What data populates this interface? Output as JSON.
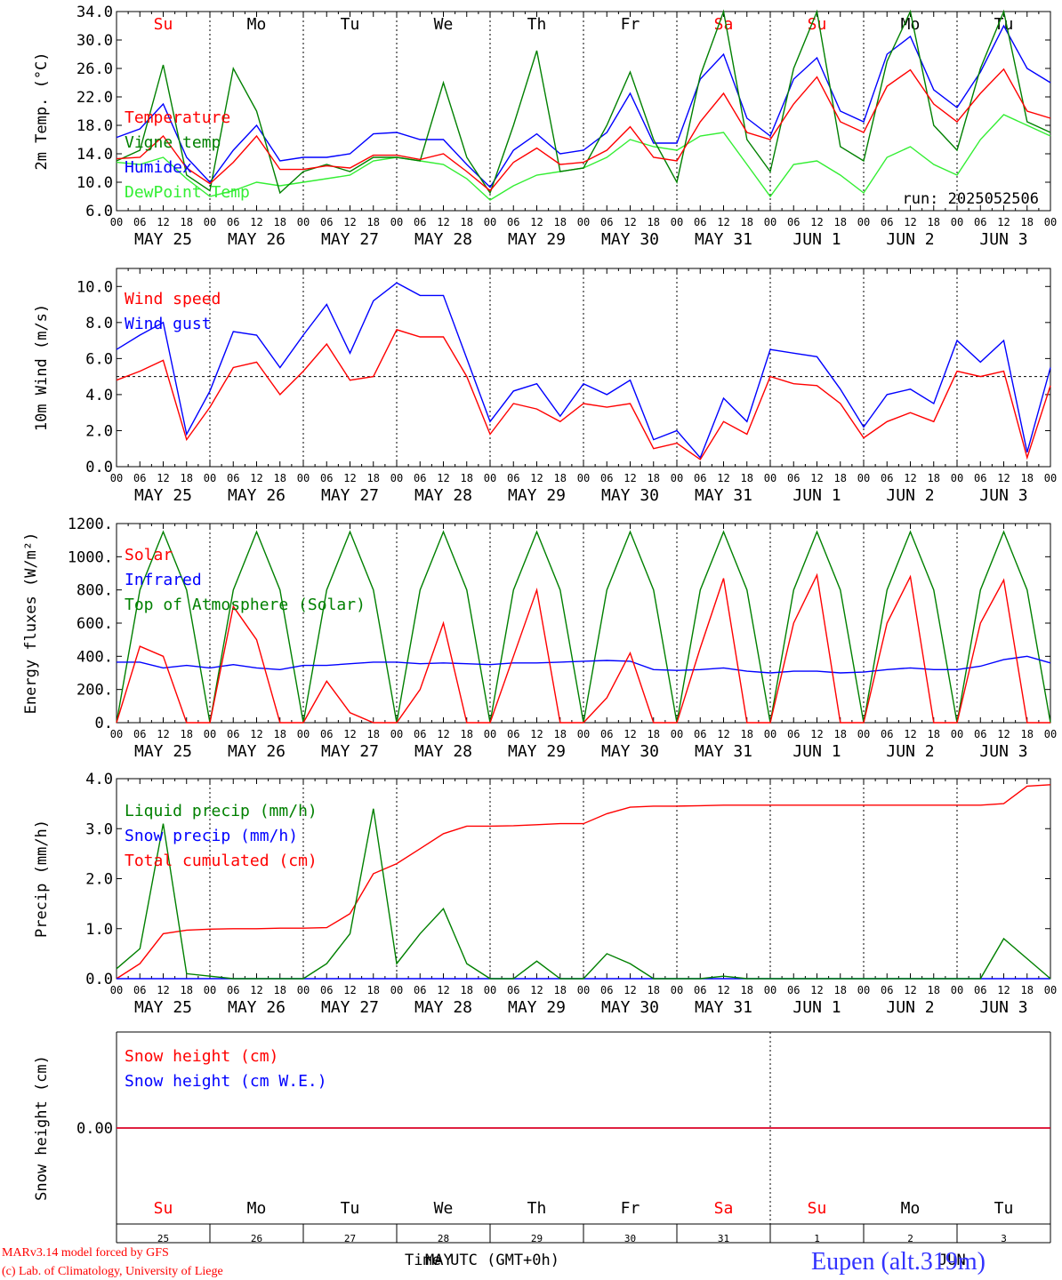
{
  "colors": {
    "red": "#ff0000",
    "green": "#008000",
    "blue": "#0000ff",
    "lightgreen": "#33ee33",
    "black": "#000000"
  },
  "days": [
    "Su",
    "Mo",
    "Tu",
    "We",
    "Th",
    "Fr",
    "Sa",
    "Su",
    "Mo",
    "Tu"
  ],
  "weekend_days": [
    0,
    6,
    7
  ],
  "date_labels": [
    "MAY 25",
    "MAY 26",
    "MAY 27",
    "MAY 28",
    "MAY 29",
    "MAY 30",
    "MAY 31",
    "JUN  1",
    "JUN  2",
    "JUN  3"
  ],
  "hour_ticks": [
    "00",
    "06",
    "12",
    "18"
  ],
  "bottom_day_numbers": [
    "25",
    "26",
    "27",
    "28",
    "29",
    "30",
    "31",
    "1",
    "2",
    "3"
  ],
  "footer": {
    "model_line": "MARv3.14 model forced by GFS",
    "copyright_line": "(c) Lab. of Climatology, University of Liege",
    "time_label": "Time UTC (GMT+0h)",
    "month_label_1": "MAY",
    "month_label_2": "JUN",
    "station": "Eupen (alt.319m)"
  },
  "chart_data": [
    {
      "type": "line",
      "ylabel": "2m Temp. (°C)",
      "ylim": [
        6,
        34
      ],
      "yticks": [
        "6.0",
        "10.0",
        "14.0",
        "18.0",
        "22.0",
        "26.0",
        "30.0",
        "34.0"
      ],
      "ytick_values": [
        6,
        10,
        14,
        18,
        22,
        26,
        30,
        34
      ],
      "run_label": "run: 2025052506",
      "x_hours": [
        0,
        6,
        12,
        18,
        24,
        30,
        36,
        42,
        48,
        54,
        60,
        66,
        72,
        78,
        84,
        90,
        96,
        102,
        108,
        114,
        120,
        126,
        132,
        138,
        144,
        150,
        156,
        162,
        168,
        174,
        180,
        186,
        192,
        198,
        204,
        210,
        216,
        222,
        228,
        234,
        240
      ],
      "series": [
        {
          "name": "Temperature",
          "color": "#ff0000",
          "values": [
            13.3,
            13.5,
            16.5,
            12.0,
            9.8,
            12.8,
            16.5,
            11.8,
            11.8,
            12.3,
            12.0,
            13.8,
            13.8,
            13.2,
            14.0,
            11.5,
            8.8,
            12.8,
            14.8,
            12.5,
            12.8,
            14.5,
            17.8,
            13.5,
            13.0,
            18.5,
            22.5,
            17.0,
            16.0,
            21.0,
            24.8,
            18.5,
            17.0,
            23.5,
            25.8,
            21.0,
            18.5,
            22.5,
            25.9,
            20.0,
            19.0
          ]
        },
        {
          "name": "Vigne temp",
          "color": "#008000",
          "values": [
            13.0,
            14.5,
            26.5,
            11.0,
            8.8,
            26.0,
            20.0,
            8.5,
            11.5,
            12.5,
            11.5,
            13.5,
            13.5,
            13.0,
            24.0,
            13.5,
            8.5,
            18.0,
            28.5,
            11.5,
            12.0,
            18.0,
            25.5,
            16.0,
            10.0,
            25.0,
            34.0,
            16.0,
            11.5,
            26.0,
            34.0,
            15.0,
            13.0,
            27.0,
            34.0,
            18.0,
            14.5,
            26.0,
            34.0,
            18.5,
            17.0
          ]
        },
        {
          "name": "Humidex",
          "color": "#0000ff",
          "values": [
            16.3,
            17.5,
            21.0,
            13.5,
            10.0,
            14.5,
            18.0,
            13.0,
            13.5,
            13.5,
            14.0,
            16.8,
            17.0,
            16.0,
            16.0,
            12.5,
            9.3,
            14.5,
            16.8,
            14.0,
            14.5,
            17.0,
            22.5,
            15.5,
            15.5,
            24.5,
            28.0,
            19.0,
            16.5,
            24.5,
            27.5,
            20.0,
            18.5,
            28.0,
            30.5,
            23.0,
            20.5,
            25.5,
            32.0,
            26.0,
            24.0
          ]
        },
        {
          "name": "DewPoint Temp",
          "color": "#33ee33",
          "values": [
            12.8,
            12.5,
            13.5,
            10.5,
            8.0,
            8.8,
            10.0,
            9.5,
            10.0,
            10.5,
            11.0,
            13.0,
            13.5,
            13.0,
            12.5,
            10.5,
            7.5,
            9.5,
            11.0,
            11.5,
            12.0,
            13.5,
            16.0,
            15.0,
            14.5,
            16.5,
            17.0,
            12.5,
            8.0,
            12.5,
            13.0,
            11.0,
            8.5,
            13.5,
            15.0,
            12.5,
            11.0,
            16.0,
            19.5,
            18.0,
            16.5
          ]
        }
      ]
    },
    {
      "type": "line",
      "ylabel": "10m Wind (m/s)",
      "ylim": [
        0,
        11
      ],
      "yticks": [
        "0.0",
        "2.0",
        "4.0",
        "6.0",
        "8.0",
        "10.0"
      ],
      "ytick_values": [
        0,
        2,
        4,
        6,
        8,
        10
      ],
      "reference_line": 5,
      "x_hours": [
        0,
        6,
        12,
        18,
        24,
        30,
        36,
        42,
        48,
        54,
        60,
        66,
        72,
        78,
        84,
        90,
        96,
        102,
        108,
        114,
        120,
        126,
        132,
        138,
        144,
        150,
        156,
        162,
        168,
        174,
        180,
        186,
        192,
        198,
        204,
        210,
        216,
        222,
        228,
        234,
        240
      ],
      "series": [
        {
          "name": "Wind speed",
          "color": "#ff0000",
          "values": [
            4.8,
            5.3,
            5.9,
            1.5,
            3.3,
            5.5,
            5.8,
            4.0,
            5.3,
            6.8,
            4.8,
            5.0,
            7.6,
            7.2,
            7.2,
            5.0,
            1.8,
            3.5,
            3.2,
            2.5,
            3.5,
            3.3,
            3.5,
            1.0,
            1.3,
            0.4,
            2.5,
            1.8,
            5.0,
            4.6,
            4.5,
            3.5,
            1.6,
            2.5,
            3.0,
            2.5,
            5.3,
            5.0,
            5.3,
            0.5,
            4.5
          ]
        },
        {
          "name": "Wind gust",
          "color": "#0000ff",
          "values": [
            6.5,
            7.3,
            8.0,
            1.8,
            4.2,
            7.5,
            7.3,
            5.5,
            7.3,
            9.0,
            6.3,
            9.2,
            10.2,
            9.5,
            9.5,
            6.0,
            2.5,
            4.2,
            4.6,
            2.8,
            4.6,
            4.0,
            4.8,
            1.5,
            2.0,
            0.5,
            3.8,
            2.5,
            6.5,
            6.3,
            6.1,
            4.3,
            2.2,
            4.0,
            4.3,
            3.5,
            7.0,
            5.8,
            7.0,
            0.8,
            5.5
          ]
        }
      ]
    },
    {
      "type": "line",
      "ylabel": "Energy fluxes (W/m²)",
      "ylim": [
        0,
        1200
      ],
      "yticks": [
        "0.",
        "200.",
        "400.",
        "600.",
        "800.",
        "1000.",
        "1200."
      ],
      "ytick_values": [
        0,
        200,
        400,
        600,
        800,
        1000,
        1200
      ],
      "x_hours": [
        0,
        6,
        12,
        18,
        24,
        30,
        36,
        42,
        48,
        54,
        60,
        66,
        72,
        78,
        84,
        90,
        96,
        102,
        108,
        114,
        120,
        126,
        132,
        138,
        144,
        150,
        156,
        162,
        168,
        174,
        180,
        186,
        192,
        198,
        204,
        210,
        216,
        222,
        228,
        234,
        240
      ],
      "series": [
        {
          "name": "Solar",
          "color": "#ff0000",
          "values": [
            0,
            460,
            400,
            0,
            0,
            700,
            500,
            0,
            0,
            250,
            60,
            0,
            0,
            200,
            600,
            0,
            0,
            400,
            800,
            0,
            0,
            150,
            420,
            0,
            0,
            450,
            870,
            0,
            0,
            600,
            890,
            0,
            0,
            600,
            880,
            0,
            0,
            600,
            860,
            0,
            0
          ]
        },
        {
          "name": "Infrared",
          "color": "#0000ff",
          "values": [
            365,
            365,
            330,
            345,
            330,
            350,
            330,
            320,
            345,
            345,
            355,
            365,
            365,
            355,
            360,
            355,
            350,
            360,
            360,
            365,
            370,
            375,
            370,
            320,
            315,
            320,
            330,
            310,
            300,
            310,
            310,
            300,
            305,
            320,
            330,
            320,
            320,
            340,
            380,
            400,
            360
          ]
        },
        {
          "name": "Top of Atmosphere (Solar)",
          "color": "#008000",
          "values": [
            0,
            800,
            1150,
            800,
            0,
            800,
            1150,
            800,
            0,
            800,
            1150,
            800,
            0,
            800,
            1150,
            800,
            0,
            800,
            1150,
            800,
            0,
            800,
            1150,
            800,
            0,
            800,
            1150,
            800,
            0,
            800,
            1150,
            800,
            0,
            800,
            1150,
            800,
            0,
            800,
            1150,
            800,
            0
          ]
        }
      ]
    },
    {
      "type": "line",
      "ylabel": "Precip (mm/h)",
      "ylim": [
        0,
        4
      ],
      "yticks": [
        "0.0",
        "1.0",
        "2.0",
        "3.0",
        "4.0"
      ],
      "ytick_values": [
        0,
        1,
        2,
        3,
        4
      ],
      "x_hours": [
        0,
        6,
        12,
        18,
        24,
        30,
        36,
        42,
        48,
        54,
        60,
        66,
        72,
        78,
        84,
        90,
        96,
        102,
        108,
        114,
        120,
        126,
        132,
        138,
        144,
        150,
        156,
        162,
        168,
        174,
        180,
        186,
        192,
        198,
        204,
        210,
        216,
        222,
        228,
        234,
        240
      ],
      "series": [
        {
          "name": "Liquid precip (mm/h)",
          "color": "#008000",
          "values": [
            0.2,
            0.6,
            3.1,
            0.1,
            0.05,
            0.0,
            0.0,
            0.0,
            0.0,
            0.3,
            0.9,
            3.4,
            0.3,
            0.9,
            1.4,
            0.3,
            0.0,
            0.0,
            0.35,
            0.0,
            0.0,
            0.5,
            0.3,
            0.0,
            0.0,
            0.0,
            0.05,
            0.0,
            0.0,
            0.0,
            0.0,
            0.0,
            0.0,
            0.0,
            0.0,
            0.0,
            0.0,
            0.0,
            0.8,
            0.4,
            0.0
          ]
        },
        {
          "name": "Snow precip (mm/h)",
          "color": "#0000ff",
          "values": [
            0,
            0,
            0,
            0,
            0,
            0,
            0,
            0,
            0,
            0,
            0,
            0,
            0,
            0,
            0,
            0,
            0,
            0,
            0,
            0,
            0,
            0,
            0,
            0,
            0,
            0,
            0,
            0,
            0,
            0,
            0,
            0,
            0,
            0,
            0,
            0,
            0,
            0,
            0,
            0,
            0
          ]
        },
        {
          "name": "Total cumulated (cm)",
          "color": "#ff0000",
          "values": [
            0.0,
            0.3,
            0.9,
            0.97,
            0.99,
            1.0,
            1.0,
            1.01,
            1.01,
            1.02,
            1.3,
            2.1,
            2.3,
            2.6,
            2.9,
            3.05,
            3.05,
            3.06,
            3.08,
            3.1,
            3.1,
            3.3,
            3.43,
            3.45,
            3.45,
            3.46,
            3.47,
            3.47,
            3.47,
            3.47,
            3.47,
            3.47,
            3.47,
            3.47,
            3.47,
            3.47,
            3.47,
            3.47,
            3.5,
            3.85,
            3.88
          ]
        }
      ]
    },
    {
      "type": "line",
      "ylabel": "Snow height (cm)",
      "ylim": [
        -1,
        1
      ],
      "yticks": [
        "0.00"
      ],
      "ytick_values": [
        0
      ],
      "x_hours": [
        0,
        240
      ],
      "series": [
        {
          "name": "Snow height (cm)",
          "color": "#ff0000",
          "values": [
            0,
            0
          ]
        },
        {
          "name": "Snow height (cm W.E.)",
          "color": "#0000ff",
          "values": [
            0,
            0
          ]
        }
      ]
    }
  ]
}
